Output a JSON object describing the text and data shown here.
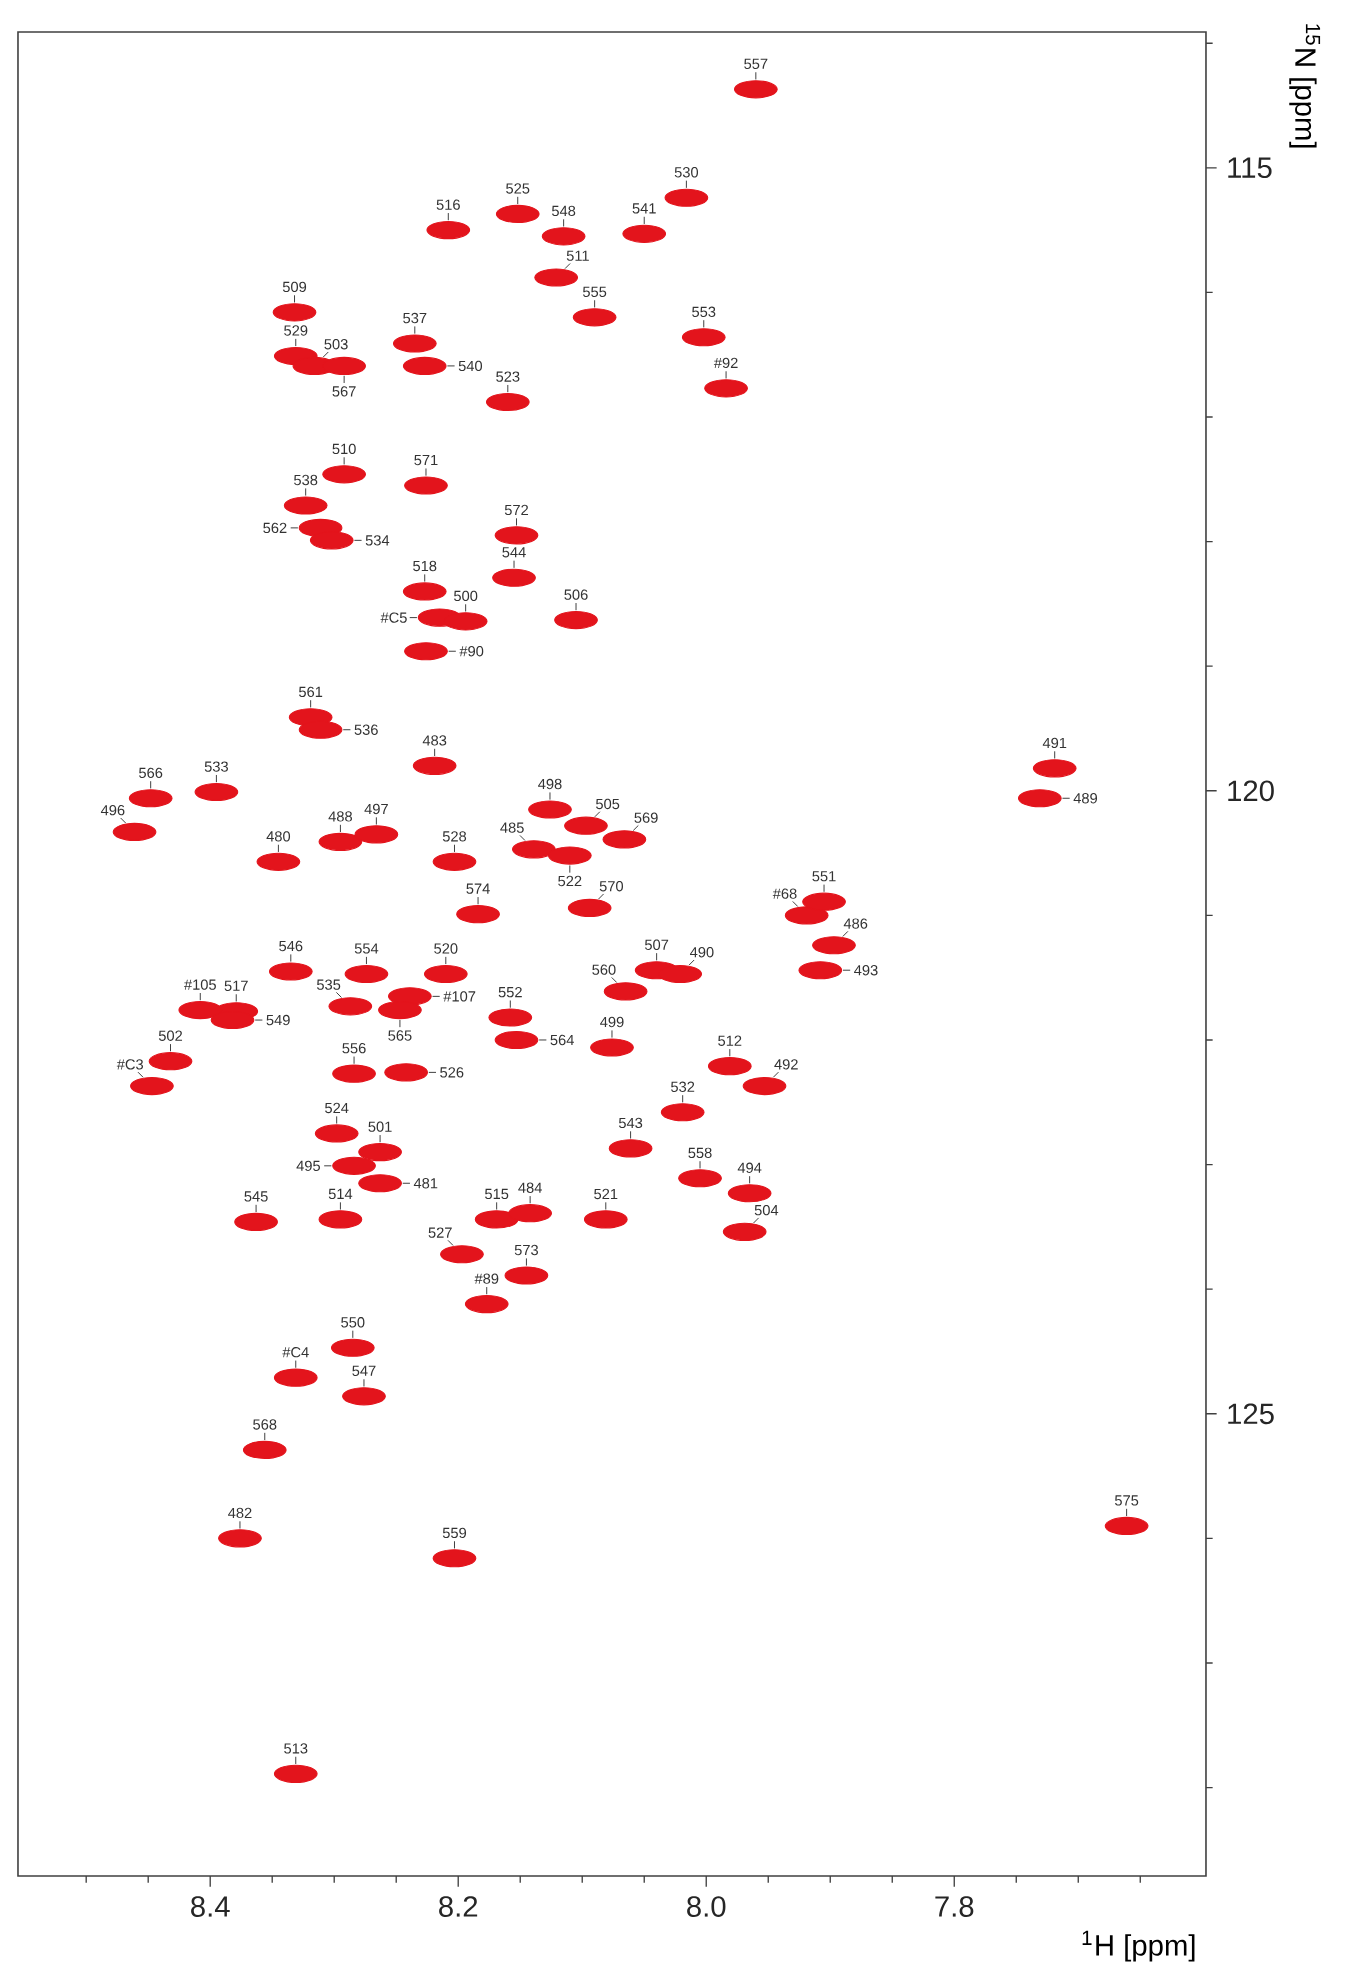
{
  "chart_data": {
    "type": "scatter",
    "xlabel": "$^{1}$H  [ppm]",
    "ylabel": "$^{15}$N [ppm]",
    "color": "#e3141c",
    "xlim": [
      8.555,
      7.597
    ],
    "ylim": [
      128.71,
      113.91
    ],
    "xticks": [
      {
        "value": 8.4,
        "label": "8.4"
      },
      {
        "value": 8.2,
        "label": "8.2"
      },
      {
        "value": 8.0,
        "label": "8.0"
      },
      {
        "value": 7.8,
        "label": "7.8"
      },
      {
        "value": 8.5,
        "label": null
      },
      {
        "value": 8.45,
        "label": null
      },
      {
        "value": 8.35,
        "label": null
      },
      {
        "value": 8.3,
        "label": null
      },
      {
        "value": 8.25,
        "label": null
      },
      {
        "value": 8.15,
        "label": null
      },
      {
        "value": 8.1,
        "label": null
      },
      {
        "value": 8.05,
        "label": null
      },
      {
        "value": 7.95,
        "label": null
      },
      {
        "value": 7.9,
        "label": null
      },
      {
        "value": 7.85,
        "label": null
      },
      {
        "value": 7.75,
        "label": null
      },
      {
        "value": 7.7,
        "label": null
      },
      {
        "value": 7.65,
        "label": null
      }
    ],
    "yticks": [
      {
        "value": 115,
        "label": "115"
      },
      {
        "value": 120,
        "label": "120"
      },
      {
        "value": 125,
        "label": "125"
      },
      {
        "value": 114,
        "label": null
      },
      {
        "value": 116,
        "label": null
      },
      {
        "value": 117,
        "label": null
      },
      {
        "value": 118,
        "label": null
      },
      {
        "value": 119,
        "label": null
      },
      {
        "value": 121,
        "label": null
      },
      {
        "value": 122,
        "label": null
      },
      {
        "value": 123,
        "label": null
      },
      {
        "value": 124,
        "label": null
      },
      {
        "value": 126,
        "label": null
      },
      {
        "value": 127,
        "label": null
      },
      {
        "value": 128,
        "label": null
      }
    ],
    "x": [
      7.96,
      8.016,
      8.152,
      8.05,
      8.115,
      8.208,
      8.121,
      8.332,
      8.331,
      8.316,
      8.292,
      8.235,
      8.227,
      8.16,
      8.09,
      8.002,
      7.984,
      8.292,
      8.226,
      8.323,
      8.311,
      8.302,
      8.153,
      8.227,
      8.155,
      8.215,
      8.194,
      8.105,
      8.226,
      8.319,
      8.311,
      8.219,
      8.448,
      8.395,
      8.461,
      8.295,
      8.266,
      8.345,
      8.203,
      8.139,
      8.126,
      8.097,
      8.066,
      8.11,
      8.184,
      8.094,
      8.04,
      8.021,
      8.065,
      8.076,
      8.158,
      8.153,
      7.919,
      7.905,
      7.897,
      7.908,
      7.719,
      7.731,
      8.335,
      8.274,
      8.21,
      8.239,
      8.247,
      8.287,
      8.379,
      8.408,
      8.382,
      8.432,
      8.447,
      8.284,
      8.242,
      8.298,
      8.263,
      8.284,
      8.263,
      8.363,
      8.295,
      8.169,
      8.142,
      8.081,
      8.197,
      8.145,
      8.177,
      8.061,
      8.019,
      7.981,
      7.953,
      8.005,
      7.965,
      7.969,
      8.285,
      8.331,
      8.276,
      8.356,
      8.376,
      8.203,
      8.331,
      7.661
    ],
    "values": [
      114.37,
      115.24,
      115.37,
      115.53,
      115.55,
      115.5,
      115.88,
      116.16,
      116.51,
      116.59,
      116.59,
      116.41,
      116.59,
      116.88,
      116.2,
      116.36,
      116.77,
      117.46,
      117.55,
      117.71,
      117.89,
      117.99,
      117.95,
      118.4,
      118.29,
      118.61,
      118.64,
      118.63,
      118.88,
      119.41,
      119.51,
      119.8,
      120.06,
      120.01,
      120.33,
      120.41,
      120.35,
      120.57,
      120.57,
      120.47,
      120.15,
      120.28,
      120.39,
      120.52,
      120.99,
      120.94,
      121.44,
      121.47,
      121.61,
      122.06,
      121.82,
      122.0,
      121.0,
      120.89,
      121.24,
      121.44,
      119.82,
      120.06,
      121.45,
      121.47,
      121.47,
      121.65,
      121.76,
      121.73,
      121.77,
      121.76,
      121.84,
      122.17,
      122.37,
      122.27,
      122.26,
      122.75,
      122.9,
      123.01,
      123.15,
      123.46,
      123.44,
      123.44,
      123.39,
      123.44,
      123.72,
      123.89,
      124.12,
      122.87,
      122.58,
      122.21,
      122.37,
      123.11,
      123.23,
      123.54,
      124.47,
      124.71,
      124.86,
      125.29,
      126.0,
      126.16,
      127.89,
      125.9
    ],
    "annotations": [
      {
        "text": "557",
        "x": 7.96,
        "y": 114.37
      },
      {
        "text": "530",
        "x": 8.016,
        "y": 115.24
      },
      {
        "text": "525",
        "x": 8.152,
        "y": 115.37
      },
      {
        "text": "541",
        "x": 8.05,
        "y": 115.53
      },
      {
        "text": "548",
        "x": 8.115,
        "y": 115.55
      },
      {
        "text": "516",
        "x": 8.208,
        "y": 115.5
      },
      {
        "text": "511",
        "x": 8.121,
        "y": 115.88
      },
      {
        "text": "509",
        "x": 8.332,
        "y": 116.16
      },
      {
        "text": "529",
        "x": 8.331,
        "y": 116.51
      },
      {
        "text": "503",
        "x": 8.316,
        "y": 116.59
      },
      {
        "text": "567",
        "x": 8.292,
        "y": 116.59
      },
      {
        "text": "537",
        "x": 8.235,
        "y": 116.41
      },
      {
        "text": "540",
        "x": 8.227,
        "y": 116.59
      },
      {
        "text": "523",
        "x": 8.16,
        "y": 116.88
      },
      {
        "text": "555",
        "x": 8.09,
        "y": 116.2
      },
      {
        "text": "553",
        "x": 8.002,
        "y": 116.36
      },
      {
        "text": "#92",
        "x": 7.984,
        "y": 116.77
      },
      {
        "text": "510",
        "x": 8.292,
        "y": 117.46
      },
      {
        "text": "571",
        "x": 8.226,
        "y": 117.55
      },
      {
        "text": "538",
        "x": 8.323,
        "y": 117.71
      },
      {
        "text": "562",
        "x": 8.311,
        "y": 117.89
      },
      {
        "text": "534",
        "x": 8.302,
        "y": 117.99
      },
      {
        "text": "572",
        "x": 8.153,
        "y": 117.95
      },
      {
        "text": "518",
        "x": 8.227,
        "y": 118.4
      },
      {
        "text": "544",
        "x": 8.155,
        "y": 118.29
      },
      {
        "text": "#C5",
        "x": 8.215,
        "y": 118.61
      },
      {
        "text": "500",
        "x": 8.194,
        "y": 118.64
      },
      {
        "text": "506",
        "x": 8.105,
        "y": 118.63
      },
      {
        "text": "#90",
        "x": 8.226,
        "y": 118.88
      },
      {
        "text": "561",
        "x": 8.319,
        "y": 119.41
      },
      {
        "text": "536",
        "x": 8.311,
        "y": 119.51
      },
      {
        "text": "483",
        "x": 8.219,
        "y": 119.8
      },
      {
        "text": "566",
        "x": 8.448,
        "y": 120.06
      },
      {
        "text": "533",
        "x": 8.395,
        "y": 120.01
      },
      {
        "text": "496",
        "x": 8.461,
        "y": 120.33
      },
      {
        "text": "488",
        "x": 8.295,
        "y": 120.41
      },
      {
        "text": "497",
        "x": 8.266,
        "y": 120.35
      },
      {
        "text": "480",
        "x": 8.345,
        "y": 120.57
      },
      {
        "text": "528",
        "x": 8.203,
        "y": 120.57
      },
      {
        "text": "485",
        "x": 8.139,
        "y": 120.47
      },
      {
        "text": "498",
        "x": 8.126,
        "y": 120.15
      },
      {
        "text": "505",
        "x": 8.097,
        "y": 120.28
      },
      {
        "text": "569",
        "x": 8.066,
        "y": 120.39
      },
      {
        "text": "522",
        "x": 8.11,
        "y": 120.52
      },
      {
        "text": "574",
        "x": 8.184,
        "y": 120.99
      },
      {
        "text": "570",
        "x": 8.094,
        "y": 120.94
      },
      {
        "text": "507",
        "x": 8.04,
        "y": 121.44
      },
      {
        "text": "490",
        "x": 8.021,
        "y": 121.47
      },
      {
        "text": "560",
        "x": 8.065,
        "y": 121.61
      },
      {
        "text": "499",
        "x": 8.076,
        "y": 122.06
      },
      {
        "text": "552",
        "x": 8.158,
        "y": 121.82
      },
      {
        "text": "564",
        "x": 8.153,
        "y": 122.0
      },
      {
        "text": "#68",
        "x": 7.919,
        "y": 121.0
      },
      {
        "text": "551",
        "x": 7.905,
        "y": 120.89
      },
      {
        "text": "486",
        "x": 7.897,
        "y": 121.24
      },
      {
        "text": "493",
        "x": 7.908,
        "y": 121.44
      },
      {
        "text": "491",
        "x": 7.719,
        "y": 119.82
      },
      {
        "text": "489",
        "x": 7.731,
        "y": 120.06
      },
      {
        "text": "546",
        "x": 8.335,
        "y": 121.45
      },
      {
        "text": "554",
        "x": 8.274,
        "y": 121.47
      },
      {
        "text": "520",
        "x": 8.21,
        "y": 121.47
      },
      {
        "text": "#107",
        "x": 8.239,
        "y": 121.65
      },
      {
        "text": "565",
        "x": 8.247,
        "y": 121.76
      },
      {
        "text": "535",
        "x": 8.287,
        "y": 121.73
      },
      {
        "text": "517",
        "x": 8.379,
        "y": 121.77
      },
      {
        "text": "#105",
        "x": 8.408,
        "y": 121.76
      },
      {
        "text": "549",
        "x": 8.382,
        "y": 121.84
      },
      {
        "text": "502",
        "x": 8.432,
        "y": 122.17
      },
      {
        "text": "#C3",
        "x": 8.447,
        "y": 122.37
      },
      {
        "text": "556",
        "x": 8.284,
        "y": 122.27
      },
      {
        "text": "526",
        "x": 8.242,
        "y": 122.26
      },
      {
        "text": "524",
        "x": 8.298,
        "y": 122.75
      },
      {
        "text": "501",
        "x": 8.263,
        "y": 122.9
      },
      {
        "text": "495",
        "x": 8.284,
        "y": 123.01
      },
      {
        "text": "481",
        "x": 8.263,
        "y": 123.15
      },
      {
        "text": "545",
        "x": 8.363,
        "y": 123.46
      },
      {
        "text": "514",
        "x": 8.295,
        "y": 123.44
      },
      {
        "text": "515",
        "x": 8.169,
        "y": 123.44
      },
      {
        "text": "484",
        "x": 8.142,
        "y": 123.39
      },
      {
        "text": "521",
        "x": 8.081,
        "y": 123.44
      },
      {
        "text": "527",
        "x": 8.197,
        "y": 123.72
      },
      {
        "text": "573",
        "x": 8.145,
        "y": 123.89
      },
      {
        "text": "#89",
        "x": 8.177,
        "y": 124.12
      },
      {
        "text": "543",
        "x": 8.061,
        "y": 122.87
      },
      {
        "text": "532",
        "x": 8.019,
        "y": 122.58
      },
      {
        "text": "512",
        "x": 7.981,
        "y": 122.21
      },
      {
        "text": "492",
        "x": 7.953,
        "y": 122.37
      },
      {
        "text": "558",
        "x": 8.005,
        "y": 123.11
      },
      {
        "text": "494",
        "x": 7.965,
        "y": 123.23
      },
      {
        "text": "504",
        "x": 7.969,
        "y": 123.54
      },
      {
        "text": "550",
        "x": 8.285,
        "y": 124.47
      },
      {
        "text": "#C4",
        "x": 8.331,
        "y": 124.71
      },
      {
        "text": "547",
        "x": 8.276,
        "y": 124.86
      },
      {
        "text": "568",
        "x": 8.356,
        "y": 125.29
      },
      {
        "text": "482",
        "x": 8.376,
        "y": 126.0
      },
      {
        "text": "559",
        "x": 8.203,
        "y": 126.16
      },
      {
        "text": "513",
        "x": 8.331,
        "y": 127.89
      },
      {
        "text": "575",
        "x": 7.661,
        "y": 125.9
      }
    ]
  }
}
